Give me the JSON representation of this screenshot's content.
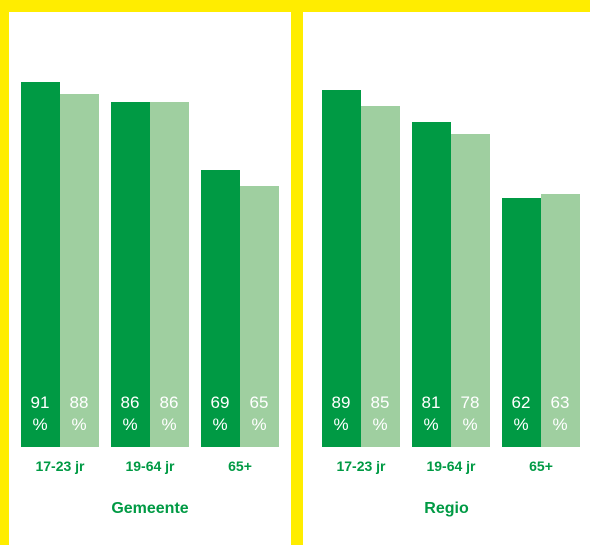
{
  "chart_data": [
    {
      "type": "bar",
      "title": "Gemeente",
      "categories": [
        "17-23 jr",
        "19-64 jr",
        "65+"
      ],
      "ylim": [
        0,
        100
      ],
      "series": [
        {
          "color": "#009a44",
          "values": [
            91,
            86,
            69
          ],
          "value_labels": [
            "91 %",
            "86 %",
            "69 %"
          ]
        },
        {
          "color": "#9fcfa0",
          "values": [
            88,
            86,
            65
          ],
          "value_labels": [
            "88 %",
            "86 %",
            "65 %"
          ]
        }
      ]
    },
    {
      "type": "bar",
      "title": "Regio",
      "categories": [
        "17-23 jr",
        "19-64 jr",
        "65+"
      ],
      "ylim": [
        0,
        100
      ],
      "series": [
        {
          "color": "#009a44",
          "values": [
            89,
            81,
            62
          ],
          "value_labels": [
            "89 %",
            "81 %",
            "62 %"
          ]
        },
        {
          "color": "#9fcfa0",
          "values": [
            85,
            78,
            63
          ],
          "value_labels": [
            "85 %",
            "78 %",
            "63 %"
          ]
        }
      ]
    }
  ]
}
